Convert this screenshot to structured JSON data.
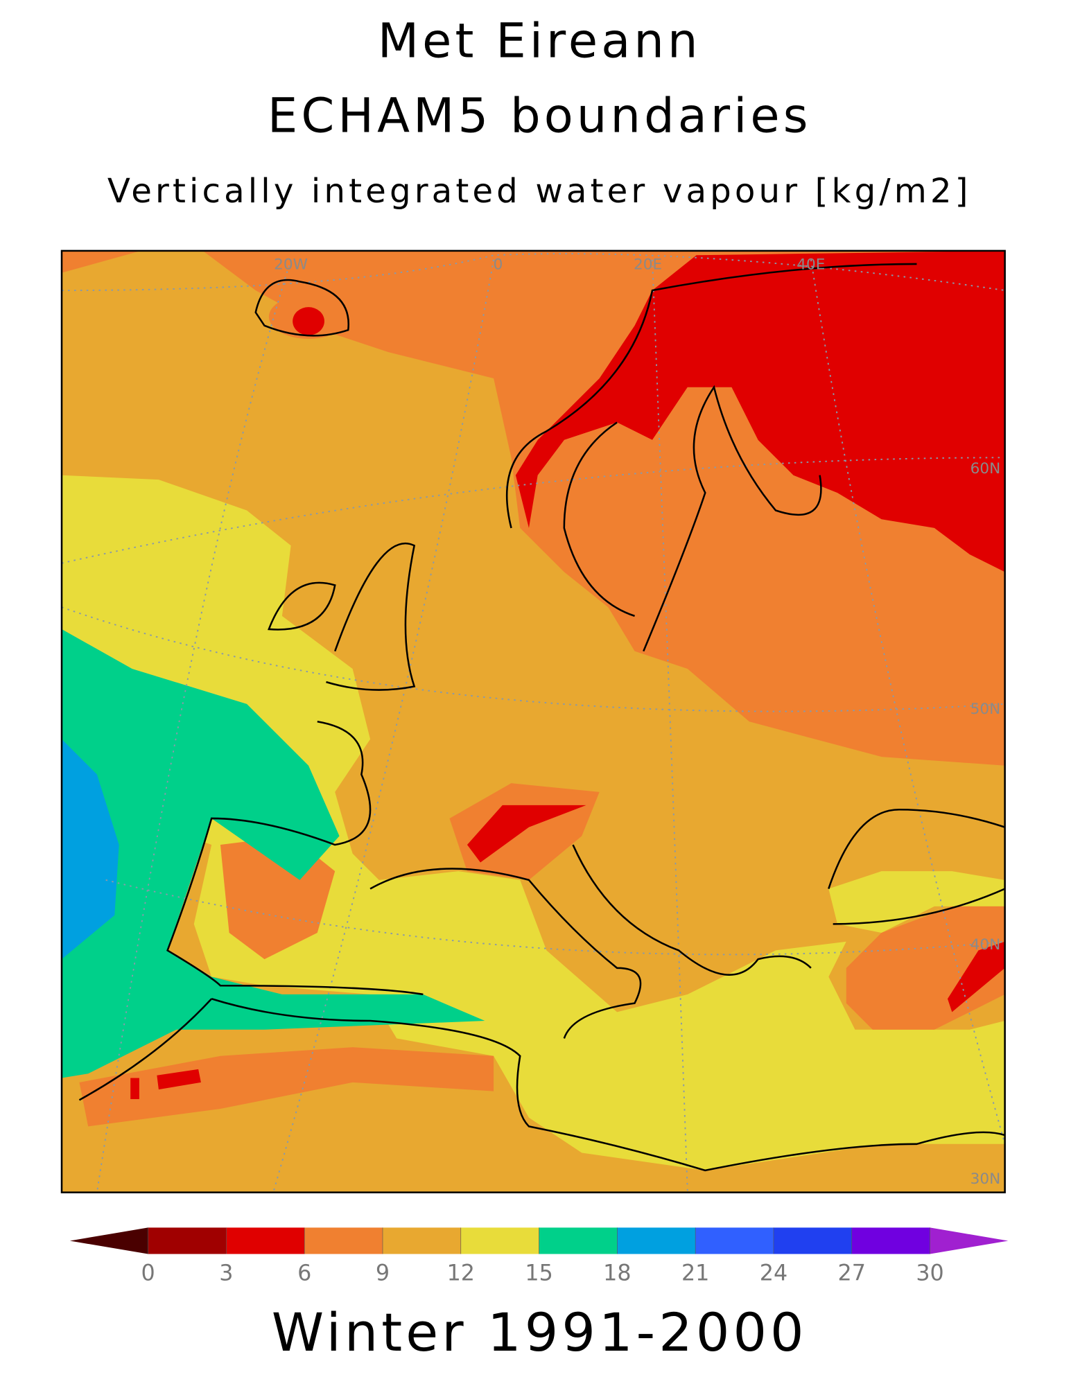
{
  "title": "Met Eireann",
  "subtitle": "ECHAM5 boundaries",
  "variable": "Vertically integrated water vapour [kg/m2]",
  "period": "Winter 1991-2000",
  "map": {
    "labels": [
      "20W",
      "0",
      "20E",
      "40E",
      "60N",
      "50N",
      "40N",
      "30N"
    ]
  },
  "colorbar": {
    "ticks": [
      0,
      3,
      6,
      9,
      12,
      15,
      18,
      21,
      24,
      27,
      30
    ],
    "colors": [
      "#4a0000",
      "#a00000",
      "#e00000",
      "#f08030",
      "#e8a830",
      "#e8dc3a",
      "#00d08a",
      "#00a0e0",
      "#3060ff",
      "#2040f0",
      "#7000e0",
      "#a020d0"
    ]
  }
}
